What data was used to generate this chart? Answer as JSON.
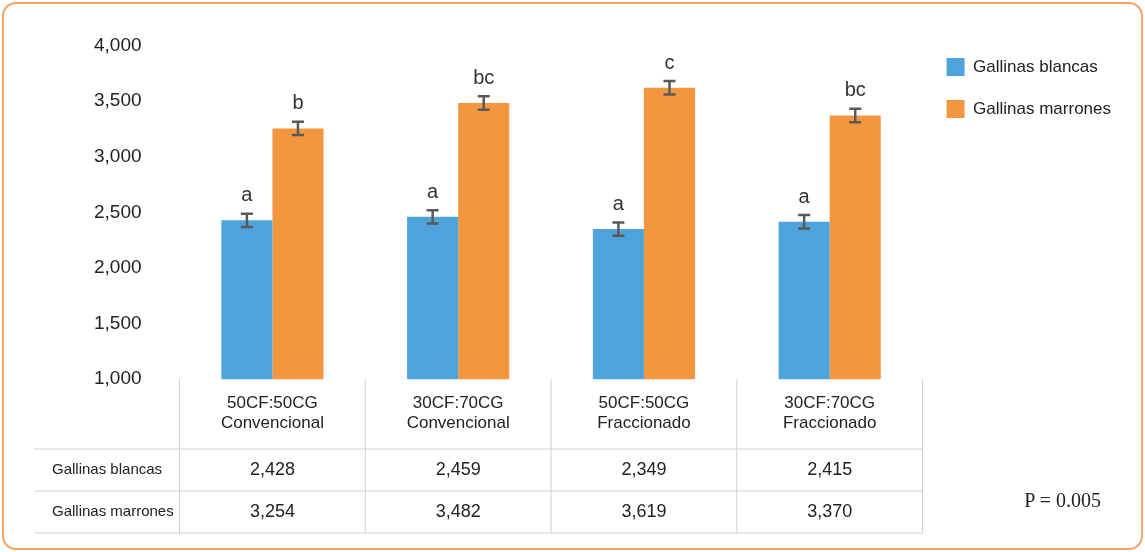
{
  "chart_data": {
    "type": "bar",
    "categories": [
      "50CF:50CG Convencional",
      "30CF:70CG Convencional",
      "50CF:50CG Fraccionado",
      "30CF:70CG Fraccionado"
    ],
    "series": [
      {
        "name": "Gallinas blancas",
        "color": "#4ea3db",
        "values": [
          2428,
          2459,
          2349,
          2415
        ],
        "errors": [
          60,
          60,
          60,
          60
        ],
        "value_labels": [
          "2,428",
          "2,459",
          "2,349",
          "2,415"
        ]
      },
      {
        "name": "Gallinas marrones",
        "color": "#f39640",
        "values": [
          3254,
          3482,
          3619,
          3370
        ],
        "errors": [
          60,
          60,
          60,
          60
        ],
        "value_labels": [
          "3,254",
          "3,482",
          "3,619",
          "3,370"
        ]
      }
    ],
    "ylim": [
      1000,
      4000
    ],
    "yticks": [
      {
        "value": 1000,
        "label": "1,000"
      },
      {
        "value": 1500,
        "label": "1,500"
      },
      {
        "value": 2000,
        "label": "2,000"
      },
      {
        "value": 2500,
        "label": "2,500"
      },
      {
        "value": 3000,
        "label": "3,000"
      },
      {
        "value": 3500,
        "label": "3,500"
      },
      {
        "value": 4000,
        "label": "4,000"
      }
    ],
    "grid": false,
    "legend": "right",
    "annotations": [
      "a",
      "b",
      "a",
      "bc",
      "a",
      "c",
      "a",
      "bc",
      "P = 0.005"
    ]
  }
}
